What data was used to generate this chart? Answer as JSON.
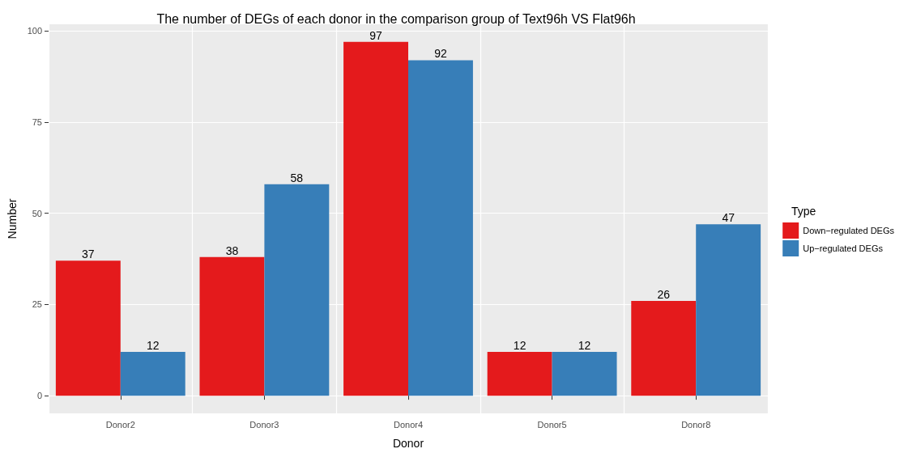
{
  "chart_data": {
    "type": "bar",
    "title": "The number of DEGs of each donor in the comparison group of Text96h VS Flat96h",
    "xlabel": "Donor",
    "ylabel": "Number",
    "legend_title": "Type",
    "categories": [
      "Donor2",
      "Donor3",
      "Donor4",
      "Donor5",
      "Donor8"
    ],
    "series": [
      {
        "name": "Down−regulated DEGs",
        "color": "#e41a1c",
        "values": [
          37,
          38,
          97,
          12,
          26
        ]
      },
      {
        "name": "Up−regulated DEGs",
        "color": "#377eb8",
        "values": [
          12,
          58,
          92,
          12,
          47
        ]
      }
    ],
    "ylim": [
      -4.85,
      101.85
    ],
    "yticks": [
      0,
      25,
      50,
      75,
      100
    ],
    "grid": true,
    "legend": "right",
    "data_labels": true
  }
}
